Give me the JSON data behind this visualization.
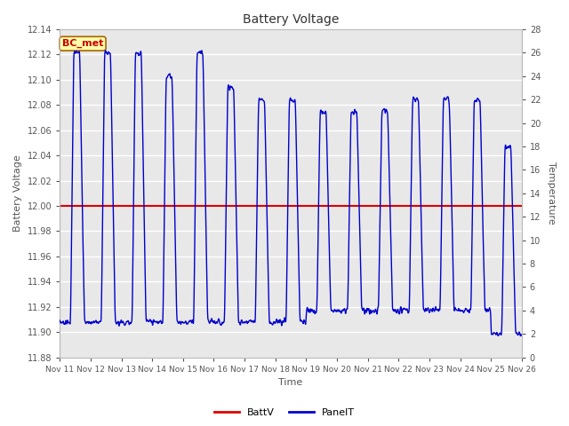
{
  "title": "Battery Voltage",
  "xlabel": "Time",
  "ylabel_left": "Battery Voltage",
  "ylabel_right": "Temperature",
  "ylim_left": [
    11.88,
    12.14
  ],
  "ylim_right": [
    0,
    28
  ],
  "batt_v": 12.0,
  "x_start": 11,
  "x_end": 26,
  "x_ticks": [
    11,
    12,
    13,
    14,
    15,
    16,
    17,
    18,
    19,
    20,
    21,
    22,
    23,
    24,
    25,
    26
  ],
  "x_tick_labels": [
    "Nov 11",
    "Nov 12",
    "Nov 13",
    "Nov 14",
    "Nov 15",
    "Nov 16",
    "Nov 17",
    "Nov 18",
    "Nov 19",
    "Nov 20",
    "Nov 21",
    "Nov 22",
    "Nov 23",
    "Nov 24",
    "Nov 25",
    "Nov 26"
  ],
  "y_ticks_left": [
    11.88,
    11.9,
    11.92,
    11.94,
    11.96,
    11.98,
    12.0,
    12.02,
    12.04,
    12.06,
    12.08,
    12.1,
    12.12,
    12.14
  ],
  "y_ticks_right": [
    0,
    2,
    4,
    6,
    8,
    10,
    12,
    14,
    16,
    18,
    20,
    22,
    24,
    26,
    28
  ],
  "line_color_batt": "#dd0000",
  "line_color_panel": "#0000cc",
  "plot_bg_color": "#e8e8e8",
  "legend_label_batt": "BattV",
  "legend_label_panel": "PanelT",
  "annotation_text": "BC_met",
  "annotation_bg": "#ffffaa",
  "annotation_border": "#aa6600",
  "figsize": [
    6.4,
    4.8
  ],
  "dpi": 100
}
